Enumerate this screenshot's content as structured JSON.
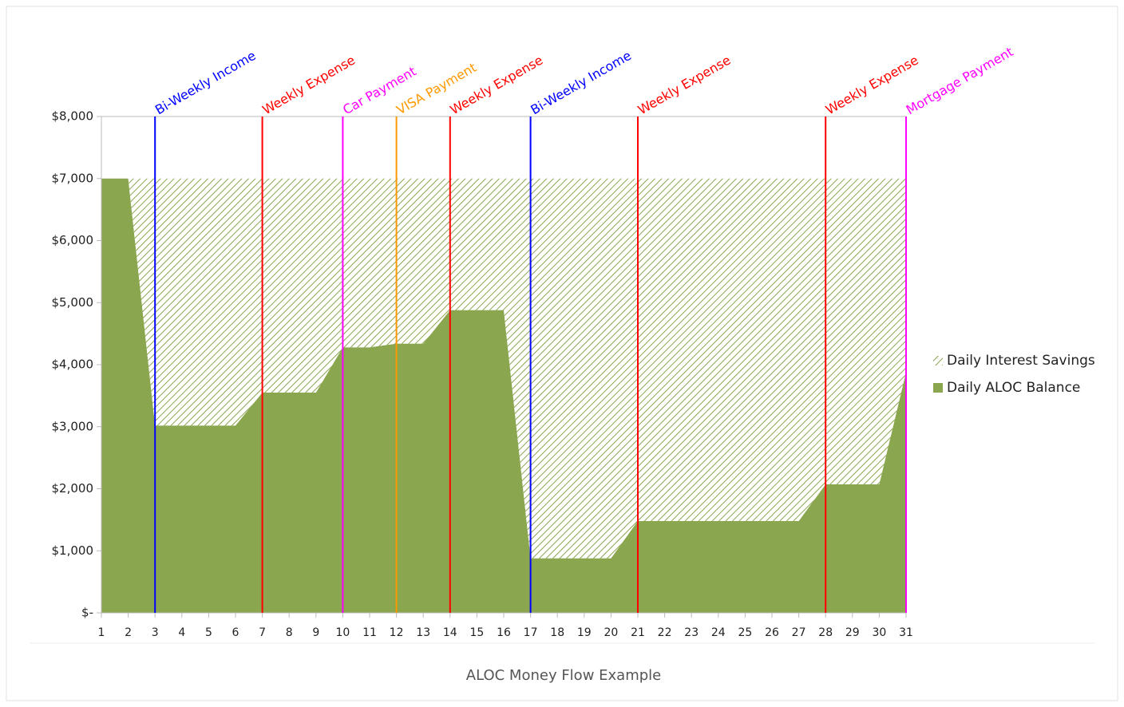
{
  "chart_data": {
    "type": "stacked-area",
    "title": "ALOC Money Flow Example",
    "categories": [
      "1",
      "2",
      "3",
      "4",
      "5",
      "6",
      "7",
      "8",
      "9",
      "10",
      "11",
      "12",
      "13",
      "14",
      "15",
      "16",
      "17",
      "18",
      "19",
      "20",
      "21",
      "22",
      "23",
      "24",
      "25",
      "26",
      "27",
      "28",
      "29",
      "30",
      "31"
    ],
    "series": [
      {
        "name": "Daily ALOC Balance",
        "color": "#8aa64e",
        "fill": "solid",
        "values": [
          7000,
          7000,
          3020,
          3020,
          3020,
          3020,
          3550,
          3550,
          3550,
          4280,
          4280,
          4340,
          4340,
          4880,
          4880,
          4880,
          880,
          880,
          880,
          880,
          1480,
          1480,
          1480,
          1480,
          1480,
          1480,
          1480,
          2070,
          2070,
          2070,
          3880
        ]
      },
      {
        "name": "Daily Interest Savings",
        "color": "#8aa64e",
        "fill": "hatch",
        "values": [
          0,
          0,
          3980,
          3980,
          3980,
          3980,
          3450,
          3450,
          3450,
          2720,
          2720,
          2660,
          2660,
          2120,
          2120,
          2120,
          6120,
          6120,
          6120,
          6120,
          5520,
          5520,
          5520,
          5520,
          5520,
          5520,
          5520,
          4930,
          4930,
          4930,
          3120
        ]
      }
    ],
    "ylim": [
      0,
      8000
    ],
    "yticks": [
      {
        "value": 0,
        "label": "$-"
      },
      {
        "value": 1000,
        "label": "$1,000"
      },
      {
        "value": 2000,
        "label": "$2,000"
      },
      {
        "value": 3000,
        "label": "$3,000"
      },
      {
        "value": 4000,
        "label": "$4,000"
      },
      {
        "value": 5000,
        "label": "$5,000"
      },
      {
        "value": 6000,
        "label": "$6,000"
      },
      {
        "value": 7000,
        "label": "$7,000"
      },
      {
        "value": 8000,
        "label": "$8,000"
      }
    ],
    "events": [
      {
        "category": "3",
        "label": "Bi-Weekly Income",
        "color": "#0000ff"
      },
      {
        "category": "7",
        "label": "Weekly Expense",
        "color": "#ff0000"
      },
      {
        "category": "10",
        "label": "Car Payment",
        "color": "#ff00ff"
      },
      {
        "category": "12",
        "label": "VISA Payment",
        "color": "#ff9900"
      },
      {
        "category": "14",
        "label": "Weekly Expense",
        "color": "#ff0000"
      },
      {
        "category": "17",
        "label": "Bi-Weekly Income",
        "color": "#0000ff"
      },
      {
        "category": "21",
        "label": "Weekly Expense",
        "color": "#ff0000"
      },
      {
        "category": "28",
        "label": "Weekly Expense",
        "color": "#ff0000"
      },
      {
        "category": "31",
        "label": "Mortgage Payment",
        "color": "#ff00ff"
      }
    ],
    "legend": "right"
  }
}
